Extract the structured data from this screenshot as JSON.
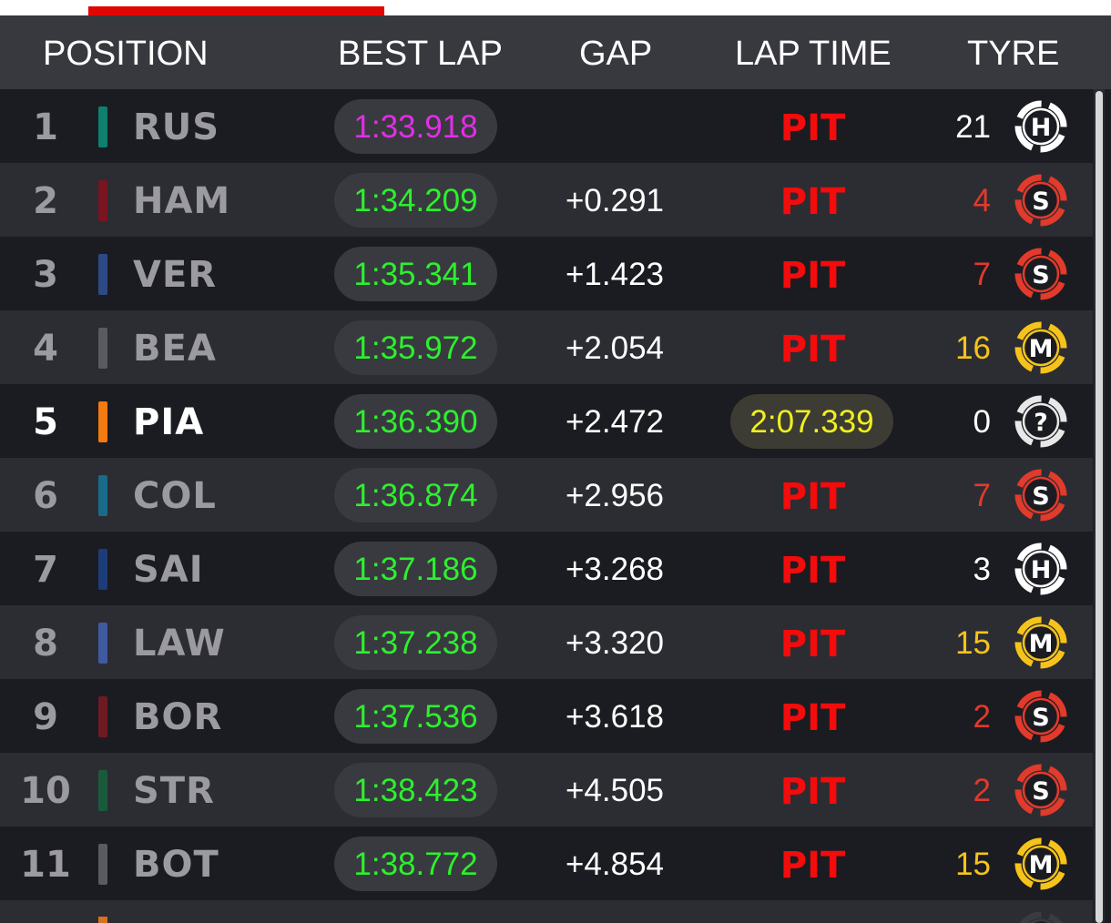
{
  "header": {
    "position": "POSITION",
    "best_lap": "BEST LAP",
    "gap": "GAP",
    "lap_time": "LAP TIME",
    "tyre": "TYRE"
  },
  "colors": {
    "accent": "#e10600",
    "best_lap_green": "#2df02d",
    "fastest_purple": "#e22ee6",
    "pit_red": "#f40b0b",
    "lap_yellow": "#f1ef1f"
  },
  "rows": [
    {
      "pos": "1",
      "driver": "RUS",
      "team_color": "#0f7f6e",
      "best_lap": "1:33.918",
      "fastest": true,
      "gap": "",
      "lap_time": "PIT",
      "lap_is_pit": true,
      "tyre_age": "21",
      "tyre_compound": "H",
      "tyre_icon": "hard-tyre-icon",
      "tyre_color": "#ffffff",
      "age_color": "#ffffff"
    },
    {
      "pos": "2",
      "driver": "HAM",
      "team_color": "#7a1420",
      "best_lap": "1:34.209",
      "fastest": false,
      "gap": "+0.291",
      "lap_time": "PIT",
      "lap_is_pit": true,
      "tyre_age": "4",
      "tyre_compound": "S",
      "tyre_icon": "soft-tyre-icon",
      "tyre_color": "#e23a2b",
      "age_color": "#e23a2b"
    },
    {
      "pos": "3",
      "driver": "VER",
      "team_color": "#2c4a86",
      "best_lap": "1:35.341",
      "fastest": false,
      "gap": "+1.423",
      "lap_time": "PIT",
      "lap_is_pit": true,
      "tyre_age": "7",
      "tyre_compound": "S",
      "tyre_icon": "soft-tyre-icon",
      "tyre_color": "#e23a2b",
      "age_color": "#e23a2b"
    },
    {
      "pos": "4",
      "driver": "BEA",
      "team_color": "#5a5b60",
      "best_lap": "1:35.972",
      "fastest": false,
      "gap": "+2.054",
      "lap_time": "PIT",
      "lap_is_pit": true,
      "tyre_age": "16",
      "tyre_compound": "M",
      "tyre_icon": "medium-tyre-icon",
      "tyre_color": "#f6c31a",
      "age_color": "#f6c31a"
    },
    {
      "pos": "5",
      "driver": "PIA",
      "team_color": "#f47a12",
      "best_lap": "1:36.390",
      "fastest": false,
      "gap": "+2.472",
      "lap_time": "2:07.339",
      "lap_is_pit": false,
      "tyre_age": "0",
      "tyre_compound": "?",
      "tyre_icon": "unknown-tyre-icon",
      "tyre_color": "#e8e8e8",
      "age_color": "#ffffff",
      "highlight": true
    },
    {
      "pos": "6",
      "driver": "COL",
      "team_color": "#1a6a8a",
      "best_lap": "1:36.874",
      "fastest": false,
      "gap": "+2.956",
      "lap_time": "PIT",
      "lap_is_pit": true,
      "tyre_age": "7",
      "tyre_compound": "S",
      "tyre_icon": "soft-tyre-icon",
      "tyre_color": "#e23a2b",
      "age_color": "#e23a2b"
    },
    {
      "pos": "7",
      "driver": "SAI",
      "team_color": "#1d3c7a",
      "best_lap": "1:37.186",
      "fastest": false,
      "gap": "+3.268",
      "lap_time": "PIT",
      "lap_is_pit": true,
      "tyre_age": "3",
      "tyre_compound": "H",
      "tyre_icon": "hard-tyre-icon",
      "tyre_color": "#ffffff",
      "age_color": "#ffffff"
    },
    {
      "pos": "8",
      "driver": "LAW",
      "team_color": "#3f5aa0",
      "best_lap": "1:37.238",
      "fastest": false,
      "gap": "+3.320",
      "lap_time": "PIT",
      "lap_is_pit": true,
      "tyre_age": "15",
      "tyre_compound": "M",
      "tyre_icon": "medium-tyre-icon",
      "tyre_color": "#f6c31a",
      "age_color": "#f6c31a"
    },
    {
      "pos": "9",
      "driver": "BOR",
      "team_color": "#6e1a22",
      "best_lap": "1:37.536",
      "fastest": false,
      "gap": "+3.618",
      "lap_time": "PIT",
      "lap_is_pit": true,
      "tyre_age": "2",
      "tyre_compound": "S",
      "tyre_icon": "soft-tyre-icon",
      "tyre_color": "#e23a2b",
      "age_color": "#e23a2b"
    },
    {
      "pos": "10",
      "driver": "STR",
      "team_color": "#1a5a3c",
      "best_lap": "1:38.423",
      "fastest": false,
      "gap": "+4.505",
      "lap_time": "PIT",
      "lap_is_pit": true,
      "tyre_age": "2",
      "tyre_compound": "S",
      "tyre_icon": "soft-tyre-icon",
      "tyre_color": "#e23a2b",
      "age_color": "#e23a2b"
    },
    {
      "pos": "11",
      "driver": "BOT",
      "team_color": "#5a5b60",
      "best_lap": "1:38.772",
      "fastest": false,
      "gap": "+4.854",
      "lap_time": "PIT",
      "lap_is_pit": true,
      "tyre_age": "15",
      "tyre_compound": "M",
      "tyre_icon": "medium-tyre-icon",
      "tyre_color": "#f6c31a",
      "age_color": "#f6c31a"
    }
  ]
}
